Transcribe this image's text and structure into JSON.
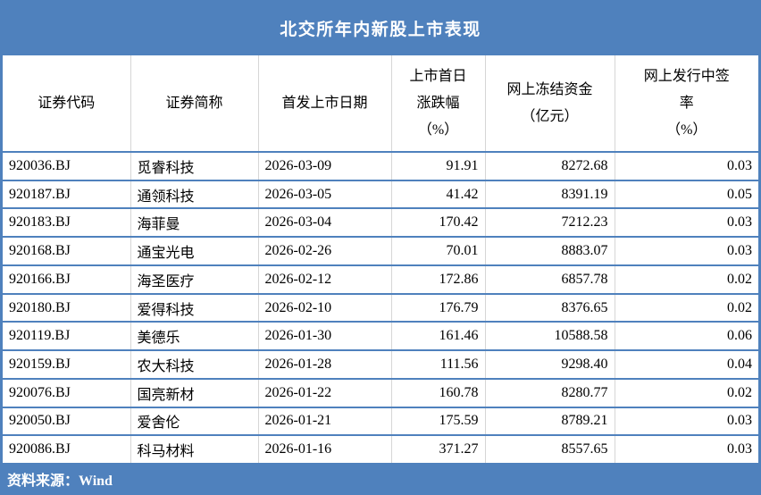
{
  "colors": {
    "accent": "#4f81bd",
    "grid_vertical": "#d6d6d6",
    "title_text": "#ffffff",
    "body_text": "#000000"
  },
  "chart_data": {
    "type": "table",
    "title": "北交所年内新股上市表现",
    "source": "资料来源：Wind",
    "columns": [
      {
        "label": "证券代码",
        "lines": [
          "证券代码"
        ],
        "align": "left"
      },
      {
        "label": "证券简称",
        "lines": [
          "证券简称"
        ],
        "align": "left"
      },
      {
        "label": "首发上市日期",
        "lines": [
          "首发上市日期"
        ],
        "align": "left"
      },
      {
        "label": "上市首日涨跌幅（%）",
        "lines": [
          "上市首日",
          "涨跌幅",
          "（%）"
        ],
        "align": "right"
      },
      {
        "label": "网上冻结资金（亿元）",
        "lines": [
          "网上冻结资金",
          "（亿元）"
        ],
        "align": "right"
      },
      {
        "label": "网上发行中签率（%）",
        "lines": [
          "网上发行中签",
          "率",
          "（%）"
        ],
        "align": "right"
      }
    ],
    "rows": [
      [
        "920036.BJ",
        "觅睿科技",
        "2026-03-09",
        "91.91",
        "8272.68",
        "0.03"
      ],
      [
        "920187.BJ",
        "通领科技",
        "2026-03-05",
        "41.42",
        "8391.19",
        "0.05"
      ],
      [
        "920183.BJ",
        "海菲曼",
        "2026-03-04",
        "170.42",
        "7212.23",
        "0.03"
      ],
      [
        "920168.BJ",
        "通宝光电",
        "2026-02-26",
        "70.01",
        "8883.07",
        "0.03"
      ],
      [
        "920166.BJ",
        "海圣医疗",
        "2026-02-12",
        "172.86",
        "6857.78",
        "0.02"
      ],
      [
        "920180.BJ",
        "爱得科技",
        "2026-02-10",
        "176.79",
        "8376.65",
        "0.02"
      ],
      [
        "920119.BJ",
        "美德乐",
        "2026-01-30",
        "161.46",
        "10588.58",
        "0.06"
      ],
      [
        "920159.BJ",
        "农大科技",
        "2026-01-28",
        "111.56",
        "9298.40",
        "0.04"
      ],
      [
        "920076.BJ",
        "国亮新材",
        "2026-01-22",
        "160.78",
        "8280.77",
        "0.02"
      ],
      [
        "920050.BJ",
        "爱舍伦",
        "2026-01-21",
        "175.59",
        "8789.21",
        "0.03"
      ],
      [
        "920086.BJ",
        "科马材料",
        "2026-01-16",
        "371.27",
        "8557.65",
        "0.03"
      ]
    ]
  }
}
